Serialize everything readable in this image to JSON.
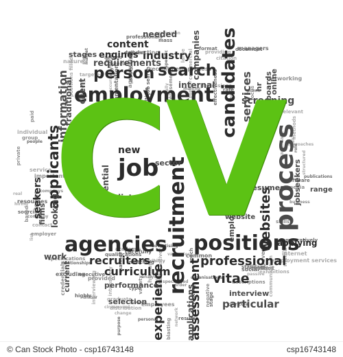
{
  "accent_color": "#5cc214",
  "center_word": "CV",
  "words_large": [
    "employment",
    "person",
    "search",
    "job",
    "agencies",
    "positions",
    "recruitment",
    "process",
    "candidates",
    "applicants",
    "professional",
    "curriculum",
    "recruiters",
    "vitae",
    "particular",
    "websites",
    "information",
    "industry",
    "requirements",
    "experience",
    "assessment",
    "services",
    "screening",
    "new",
    "sector",
    "potential",
    "lists",
    "seekers",
    "looking",
    "firms",
    "work",
    "current",
    "performance",
    "selection",
    "interview",
    "resumes",
    "content",
    "engines",
    "stages",
    "needed",
    "companies",
    "hr",
    "boards",
    "online",
    "internal",
    "client",
    "traditional",
    "short",
    "employers",
    "applications",
    "website",
    "applying",
    "jobseekers",
    "range"
  ],
  "words_small": [
    "comparatively",
    "involve",
    "methods",
    "curricula",
    "descriptions",
    "member",
    "specific",
    "reverse",
    "contact",
    "advertising",
    "employees",
    "relevant",
    "manner",
    "physical",
    "internet",
    "qualities",
    "conducting",
    "network",
    "people",
    "variety",
    "vacancies",
    "software",
    "allow",
    "human",
    "reach",
    "group",
    "exhibitions",
    "sourcing",
    "important",
    "individual",
    "mass",
    "focus",
    "hiring",
    "organisations",
    "negative",
    "distribution",
    "qualifications",
    "skills",
    "free",
    "job search",
    "networking",
    "popular",
    "social",
    "flexibility",
    "commercial",
    "standard",
    "academic",
    "citation",
    "excluding",
    "company",
    "alternatively",
    "highly",
    "specialized",
    "seek",
    "managers",
    "paid",
    "change",
    "fit",
    "private",
    "graduate",
    "executive",
    "based",
    "large",
    "multiple",
    "media",
    "approaches",
    "matching",
    "credentials",
    "interviewing",
    "publications",
    "blasting",
    "expression",
    "purpose",
    "order",
    "directly",
    "deliver",
    "prime",
    "service",
    "role",
    "mailing",
    "circumvent",
    "carefully",
    "provided",
    "providing",
    "documentation",
    "analysis",
    "intensively",
    "document",
    "created",
    "actively",
    "professionals",
    "specifications",
    "structured",
    "market",
    "effort",
    "passive",
    "marketing",
    "employer",
    "typically",
    "resume",
    "post",
    "list",
    "format",
    "reveal",
    "nature",
    "stage",
    "hands",
    "targeted",
    "rate",
    "agency",
    "professions",
    "resources",
    "business",
    "candidate",
    "type",
    "advertisements",
    "accurate",
    "personal",
    "outcome",
    "real",
    "assessing",
    "access",
    "communication",
    "common",
    "companys",
    "positions filled",
    "effectiveness",
    "recruitment process",
    "employment services",
    "relationships"
  ],
  "footer": {
    "left": "© Can Stock Photo - csp16743148",
    "right": "csp16743148"
  }
}
